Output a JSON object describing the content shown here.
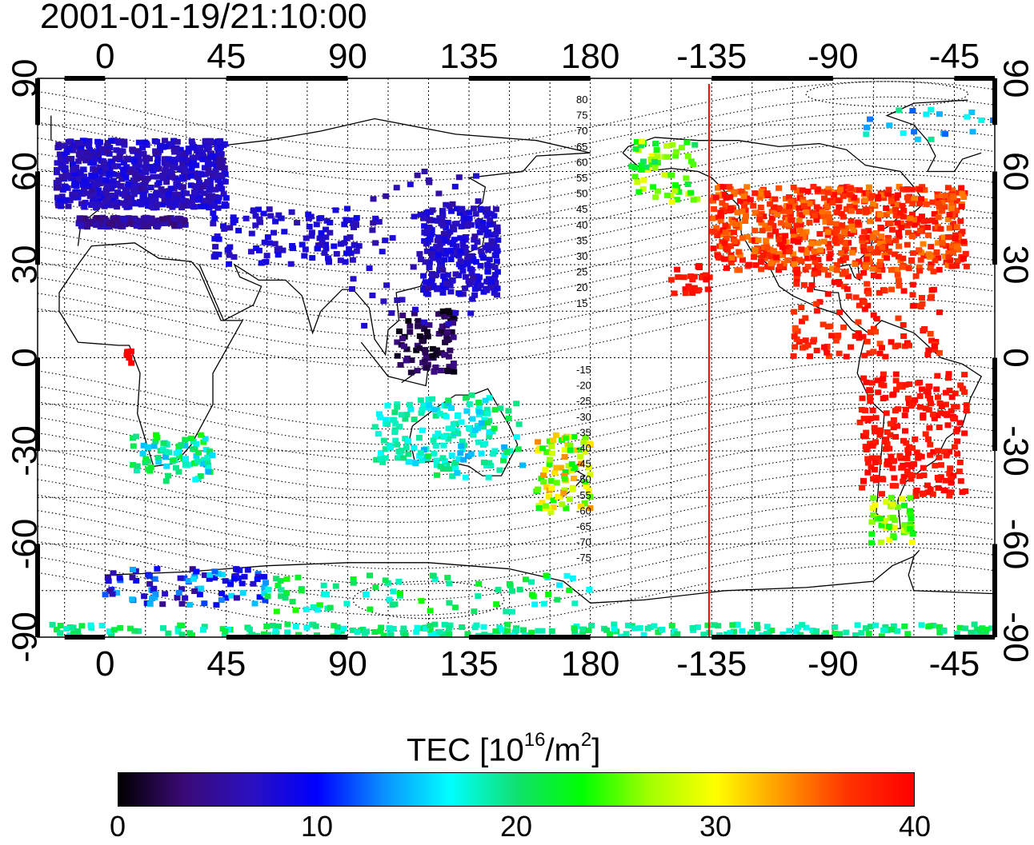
{
  "title": "2001-01-19/21:10:00",
  "map": {
    "top_lon_labels": [
      "0",
      "45",
      "90",
      "135",
      "180",
      "-135",
      "-90",
      "-45"
    ],
    "bottom_lon_labels": [
      "0",
      "45",
      "90",
      "135",
      "180",
      "-135",
      "-90",
      "-45"
    ],
    "lat_labels": [
      "90",
      "60",
      "30",
      "0",
      "-30",
      "-60",
      "-90"
    ],
    "lon_range": [
      -25,
      330
    ],
    "lat_range": [
      -90,
      90
    ],
    "terminator_lon": -136,
    "terminator_color": "#ff0000",
    "mlat_labels_north": [
      "80",
      "75",
      "70",
      "65",
      "60",
      "55",
      "50",
      "45",
      "40",
      "35",
      "30",
      "25",
      "20",
      "15"
    ],
    "mlat_labels_south": [
      "-15",
      "-20",
      "-25",
      "-30",
      "-35",
      "-40",
      "-45",
      "-50",
      "-55",
      "-60",
      "-65",
      "-70",
      "-75"
    ]
  },
  "colorbar": {
    "title": "TEC  [10",
    "title_exp": "16",
    "title_unit": "/m",
    "title_unit_exp": "2",
    "title_close": "]",
    "min": 0,
    "max": 40,
    "ticks": [
      "0",
      "10",
      "20",
      "30",
      "40"
    ],
    "colors": [
      "#000000",
      "#3a0a78",
      "#2a10c0",
      "#0000ff",
      "#0a90ff",
      "#00ffff",
      "#10e070",
      "#00ff00",
      "#a0ff00",
      "#ffff00",
      "#ff9900",
      "#ff3300",
      "#ff0000"
    ]
  }
}
